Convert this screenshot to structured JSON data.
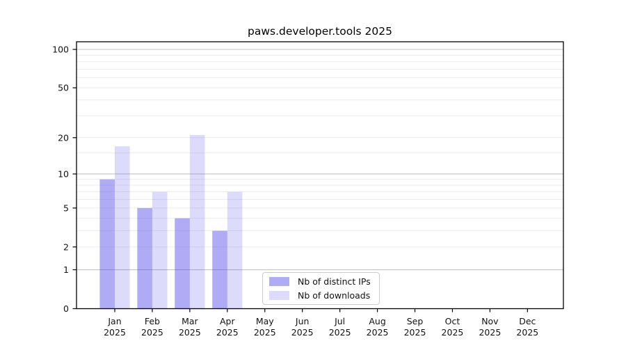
{
  "chart_data": {
    "type": "bar",
    "title": "paws.developer.tools 2025",
    "categories": [
      "Jan",
      "Feb",
      "Mar",
      "Apr",
      "May",
      "Jun",
      "Jul",
      "Aug",
      "Sep",
      "Oct",
      "Nov",
      "Dec"
    ],
    "year_label": "2025",
    "series": [
      {
        "name": "Nb of distinct IPs",
        "color": "rgba(72,64,232,0.44)",
        "values": [
          9,
          5,
          4,
          3,
          0,
          0,
          0,
          0,
          0,
          0,
          0,
          0
        ]
      },
      {
        "name": "Nb of downloads",
        "color": "rgba(72,64,232,0.19)",
        "values": [
          17,
          7,
          21,
          7,
          0,
          0,
          0,
          0,
          0,
          0,
          0,
          0
        ]
      }
    ],
    "y_axis": {
      "scale": "log10(1+v)",
      "ylim": [
        0,
        100
      ],
      "tick_values": [
        0,
        1,
        2,
        5,
        10,
        20,
        50,
        100
      ],
      "tick_labels": [
        "0",
        "1",
        "2",
        "5",
        "10",
        "20",
        "50",
        "100"
      ],
      "major_grid_values": [
        1,
        10,
        100
      ],
      "minor_grid_values": [
        2,
        3,
        4,
        5,
        6,
        7,
        8,
        9,
        15,
        20,
        30,
        40,
        50,
        60,
        70,
        80,
        90
      ]
    },
    "x_axis": {
      "tick_line1": [
        "Jan",
        "Feb",
        "Mar",
        "Apr",
        "May",
        "Jun",
        "Jul",
        "Aug",
        "Sep",
        "Oct",
        "Nov",
        "Dec"
      ],
      "tick_line2": "2025"
    },
    "legend": {
      "location": "lower center",
      "entries": [
        "Nb of distinct IPs",
        "Nb of downloads"
      ]
    }
  },
  "colors": {
    "background": "#ffffff",
    "axis": "#000000",
    "grid_major": "#c4c4c4",
    "grid_minor": "#ececec",
    "tick_text": "#111111",
    "legend_border": "#cccccc"
  }
}
